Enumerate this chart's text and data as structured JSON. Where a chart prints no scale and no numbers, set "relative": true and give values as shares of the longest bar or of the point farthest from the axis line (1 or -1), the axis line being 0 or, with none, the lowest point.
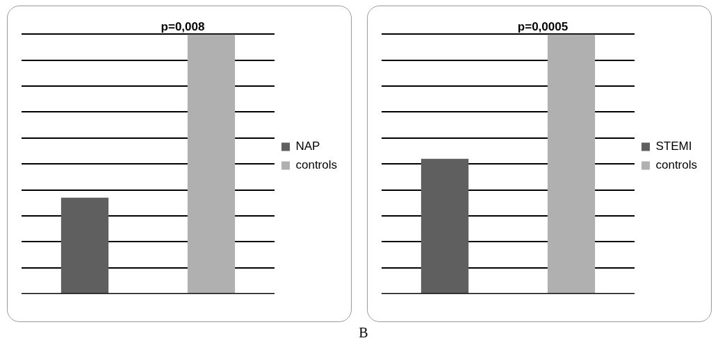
{
  "chart_data": [
    {
      "type": "bar",
      "title": "p=0,008",
      "categories": [
        null,
        null
      ],
      "relative": true,
      "stacked": true,
      "grid": "y",
      "legend": "right",
      "series": [
        {
          "name": "NAP",
          "color": "#5f5f5f",
          "values": [
            0.37,
            null
          ]
        },
        {
          "name": "controls",
          "color": "#b0b0b0",
          "values": [
            null,
            1
          ]
        }
      ]
    },
    {
      "type": "bar",
      "title": "p=0,0005",
      "categories": [
        null,
        null
      ],
      "relative": true,
      "stacked": true,
      "grid": "y",
      "legend": "right",
      "annotations": [
        "B"
      ],
      "series": [
        {
          "name": "STEMI",
          "color": "#5f5f5f",
          "values": [
            0.52,
            null
          ]
        },
        {
          "name": "controls",
          "color": "#b0b0b0",
          "values": [
            null,
            1
          ]
        }
      ]
    }
  ]
}
